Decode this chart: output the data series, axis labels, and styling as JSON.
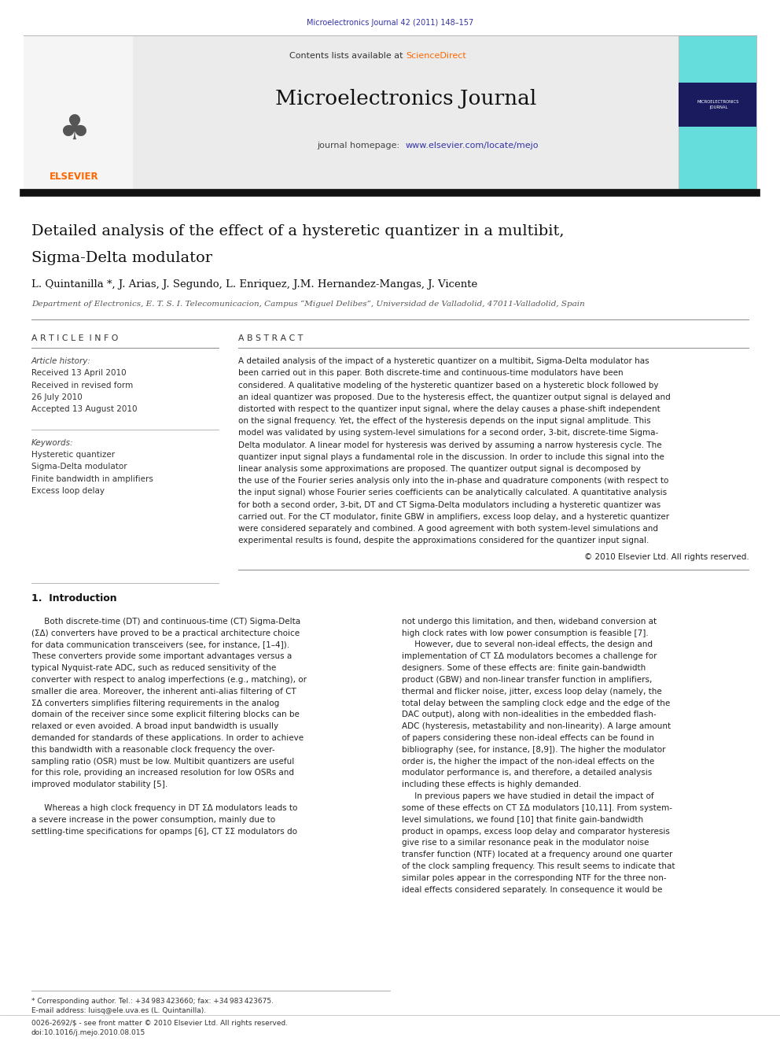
{
  "page_width": 9.92,
  "page_height": 13.23,
  "bg_color": "#ffffff",
  "top_journal_ref": "Microelectronics Journal 42 (2011) 148–157",
  "top_journal_ref_color": "#3333aa",
  "header_bg": "#e8e8e8",
  "header_contents": "Contents lists available at",
  "header_sciencedirect": "ScienceDirect",
  "header_sciencedirect_color": "#ff6600",
  "journal_title": "Microelectronics Journal",
  "journal_homepage_text": "journal homepage:",
  "journal_homepage_url": "www.elsevier.com/locate/mejo",
  "journal_homepage_url_color": "#3333aa",
  "article_title_line1": "Detailed analysis of the effect of a hysteretic quantizer in a multibit,",
  "article_title_line2": "Sigma-Delta modulator",
  "authors": "L. Quintanilla *, J. Arias, J. Segundo, L. Enriquez, J.M. Hernandez-Mangas, J. Vicente",
  "affiliation": "Department of Electronics, E. T. S. I. Telecomunicacion, Campus “Miguel Delibes”, Universidad de Valladolid, 47011-Valladolid, Spain",
  "article_info_title": "A R T I C L E  I N F O",
  "abstract_title": "A B S T R A C T",
  "article_history_label": "Article history:",
  "received1": "Received 13 April 2010",
  "received2": "Received in revised form",
  "received2b": "26 July 2010",
  "accepted": "Accepted 13 August 2010",
  "keywords_label": "Keywords:",
  "keyword1": "Hysteretic quantizer",
  "keyword2": "Sigma-Delta modulator",
  "keyword3": "Finite bandwidth in amplifiers",
  "keyword4": "Excess loop delay",
  "abstract_text_lines": [
    "A detailed analysis of the impact of a hysteretic quantizer on a multibit, Sigma-Delta modulator has",
    "been carried out in this paper. Both discrete-time and continuous-time modulators have been",
    "considered. A qualitative modeling of the hysteretic quantizer based on a hysteretic block followed by",
    "an ideal quantizer was proposed. Due to the hysteresis effect, the quantizer output signal is delayed and",
    "distorted with respect to the quantizer input signal, where the delay causes a phase-shift independent",
    "on the signal frequency. Yet, the effect of the hysteresis depends on the input signal amplitude. This",
    "model was validated by using system-level simulations for a second order, 3-bit, discrete-time Sigma-",
    "Delta modulator. A linear model for hysteresis was derived by assuming a narrow hysteresis cycle. The",
    "quantizer input signal plays a fundamental role in the discussion. In order to include this signal into the",
    "linear analysis some approximations are proposed. The quantizer output signal is decomposed by",
    "the use of the Fourier series analysis only into the in-phase and quadrature components (with respect to",
    "the input signal) whose Fourier series coefficients can be analytically calculated. A quantitative analysis",
    "for both a second order, 3-bit, DT and CT Sigma-Delta modulators including a hysteretic quantizer was",
    "carried out. For the CT modulator, finite GBW in amplifiers, excess loop delay, and a hysteretic quantizer",
    "were considered separately and combined. A good agreement with both system-level simulations and",
    "experimental results is found, despite the approximations considered for the quantizer input signal."
  ],
  "copyright": "© 2010 Elsevier Ltd. All rights reserved.",
  "section1_title": "1.  Introduction",
  "intro_col1_lines": [
    "     Both discrete-time (DT) and continuous-time (CT) Sigma-Delta",
    "(ΣΔ) converters have proved to be a practical architecture choice",
    "for data communication transceivers (see, for instance, [1–4]).",
    "These converters provide some important advantages versus a",
    "typical Nyquist-rate ADC, such as reduced sensitivity of the",
    "converter with respect to analog imperfections (e.g., matching), or",
    "smaller die area. Moreover, the inherent anti-alias filtering of CT",
    "ΣΔ converters simplifies filtering requirements in the analog",
    "domain of the receiver since some explicit filtering blocks can be",
    "relaxed or even avoided. A broad input bandwidth is usually",
    "demanded for standards of these applications. In order to achieve",
    "this bandwidth with a reasonable clock frequency the over-",
    "sampling ratio (OSR) must be low. Multibit quantizers are useful",
    "for this role, providing an increased resolution for low OSRs and",
    "improved modulator stability [5].",
    "",
    "     Whereas a high clock frequency in DT ΣΔ modulators leads to",
    "a severe increase in the power consumption, mainly due to",
    "settling-time specifications for opamps [6], CT ΣΣ modulators do"
  ],
  "intro_col2_lines": [
    "not undergo this limitation, and then, wideband conversion at",
    "high clock rates with low power consumption is feasible [7].",
    "     However, due to several non-ideal effects, the design and",
    "implementation of CT ΣΔ modulators becomes a challenge for",
    "designers. Some of these effects are: finite gain-bandwidth",
    "product (GBW) and non-linear transfer function in amplifiers,",
    "thermal and flicker noise, jitter, excess loop delay (namely, the",
    "total delay between the sampling clock edge and the edge of the",
    "DAC output), along with non-idealities in the embedded flash-",
    "ADC (hysteresis, metastability and non-linearity). A large amount",
    "of papers considering these non-ideal effects can be found in",
    "bibliography (see, for instance, [8,9]). The higher the modulator",
    "order is, the higher the impact of the non-ideal effects on the",
    "modulator performance is, and therefore, a detailed analysis",
    "including these effects is highly demanded.",
    "     In previous papers we have studied in detail the impact of",
    "some of these effects on CT ΣΔ modulators [10,11]. From system-",
    "level simulations, we found [10] that finite gain-bandwidth",
    "product in opamps, excess loop delay and comparator hysteresis",
    "give rise to a similar resonance peak in the modulator noise",
    "transfer function (NTF) located at a frequency around one quarter",
    "of the clock sampling frequency. This result seems to indicate that",
    "similar poles appear in the corresponding NTF for the three non-",
    "ideal effects considered separately. In consequence it would be"
  ],
  "footer_line": "* Corresponding author. Tel.: +34 983 423660; fax: +34 983 423675.",
  "footer_email": "E-mail address: luisq@ele.uva.es (L. Quintanilla).",
  "footer_issn": "0026-2692/$ - see front matter © 2010 Elsevier Ltd. All rights reserved.",
  "footer_doi": "doi:10.1016/j.mejo.2010.08.015"
}
